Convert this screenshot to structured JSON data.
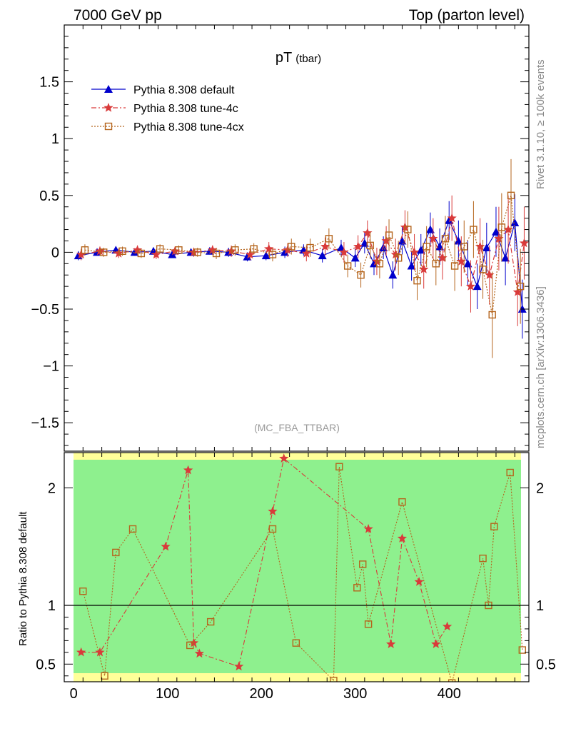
{
  "header": {
    "left": "7000 GeV pp",
    "right": "Top (parton level)"
  },
  "side_text": {
    "rivet": "Rivet 3.1.10, ≥ 100k events",
    "source": "mcplots.cern.ch [arXiv:1306.3436]"
  },
  "chart_data": [
    {
      "type": "scatter",
      "title": "pT",
      "title_sub": "(tbar)",
      "watermark": "(MC_FBA_TTBAR)",
      "xlabel": "",
      "ylabel": "",
      "xlim": [
        -10,
        485
      ],
      "ylim": [
        -1.75,
        2.0
      ],
      "yticks": [
        -1.5,
        -1,
        -0.5,
        0,
        0.5,
        1,
        1.5
      ],
      "ytick_labels": [
        "−1.5",
        "−1",
        "−0.5",
        "0",
        "0.5",
        "1",
        "1.5"
      ],
      "legend_position": "top-left",
      "series": [
        {
          "name": "Pythia 8.308 default",
          "color": "#0000cc",
          "marker": "triangle",
          "line": "solid",
          "x": [
            5,
            25,
            45,
            65,
            85,
            105,
            125,
            145,
            165,
            185,
            205,
            225,
            245,
            265,
            285,
            300,
            310,
            320,
            330,
            340,
            350,
            360,
            370,
            380,
            390,
            400,
            410,
            420,
            430,
            440,
            450,
            460,
            470,
            478
          ],
          "y": [
            -0.03,
            0.0,
            0.02,
            0.0,
            0.01,
            -0.02,
            0.0,
            0.01,
            0.0,
            -0.04,
            -0.03,
            0.0,
            0.02,
            -0.03,
            0.04,
            -0.05,
            0.08,
            -0.1,
            0.04,
            -0.2,
            0.1,
            -0.12,
            0.02,
            0.2,
            0.05,
            0.28,
            0.1,
            -0.1,
            -0.3,
            0.04,
            0.18,
            -0.05,
            0.26,
            -0.5
          ],
          "yerr": [
            0.04,
            0.03,
            0.03,
            0.03,
            0.03,
            0.03,
            0.03,
            0.03,
            0.04,
            0.04,
            0.04,
            0.05,
            0.05,
            0.06,
            0.07,
            0.08,
            0.09,
            0.1,
            0.1,
            0.12,
            0.12,
            0.13,
            0.14,
            0.15,
            0.16,
            0.17,
            0.18,
            0.2,
            0.2,
            0.22,
            0.22,
            0.24,
            0.25,
            0.26
          ]
        },
        {
          "name": "Pythia 8.308 tune-4c",
          "color": "#d93a3a",
          "marker": "star",
          "line": "dashdot",
          "x": [
            8,
            28,
            48,
            68,
            88,
            108,
            128,
            148,
            168,
            188,
            208,
            228,
            248,
            268,
            288,
            303,
            313,
            323,
            333,
            343,
            353,
            363,
            373,
            383,
            393,
            403,
            413,
            423,
            433,
            443,
            453,
            463,
            473,
            480
          ],
          "y": [
            -0.02,
            0.01,
            -0.01,
            0.02,
            -0.02,
            0.01,
            0.0,
            0.02,
            0.01,
            -0.02,
            0.03,
            0.02,
            -0.01,
            0.05,
            0.0,
            0.05,
            0.17,
            -0.08,
            0.1,
            -0.02,
            0.22,
            0.0,
            -0.15,
            0.12,
            -0.05,
            0.3,
            -0.08,
            -0.3,
            0.05,
            -0.2,
            0.12,
            0.2,
            -0.35,
            0.08
          ],
          "yerr": [
            0.05,
            0.04,
            0.04,
            0.04,
            0.04,
            0.04,
            0.04,
            0.04,
            0.05,
            0.05,
            0.06,
            0.06,
            0.07,
            0.08,
            0.09,
            0.1,
            0.11,
            0.12,
            0.13,
            0.14,
            0.15,
            0.16,
            0.17,
            0.18,
            0.19,
            0.2,
            0.22,
            0.23,
            0.25,
            0.26,
            0.28,
            0.3,
            0.3,
            0.32
          ]
        },
        {
          "name": "Pythia 8.308 tune-4cx",
          "color": "#b5651d",
          "marker": "square",
          "line": "dotted",
          "x": [
            12,
            32,
            52,
            72,
            92,
            112,
            132,
            152,
            172,
            192,
            212,
            232,
            252,
            272,
            292,
            306,
            316,
            326,
            336,
            346,
            356,
            366,
            376,
            386,
            396,
            406,
            416,
            426,
            436,
            446,
            456,
            466,
            476
          ],
          "y": [
            0.02,
            0.0,
            0.01,
            -0.01,
            0.03,
            0.02,
            0.0,
            -0.01,
            0.02,
            0.03,
            -0.02,
            0.05,
            0.04,
            0.12,
            -0.12,
            -0.2,
            0.06,
            -0.1,
            0.15,
            -0.05,
            0.2,
            -0.25,
            0.05,
            -0.1,
            0.12,
            -0.12,
            0.05,
            0.2,
            -0.15,
            -0.55,
            0.22,
            0.5,
            -0.3
          ],
          "yerr": [
            0.05,
            0.04,
            0.04,
            0.04,
            0.04,
            0.04,
            0.04,
            0.05,
            0.05,
            0.05,
            0.06,
            0.07,
            0.08,
            0.09,
            0.1,
            0.11,
            0.12,
            0.13,
            0.14,
            0.15,
            0.16,
            0.17,
            0.18,
            0.19,
            0.2,
            0.22,
            0.23,
            0.25,
            0.26,
            0.38,
            0.3,
            0.32,
            0.33
          ]
        }
      ]
    },
    {
      "type": "scatter",
      "ylabel": "Ratio to Pythia 8.308 default",
      "xlim": [
        -10,
        485
      ],
      "ylim": [
        0.35,
        2.3
      ],
      "yticks": [
        0.5,
        1,
        2
      ],
      "ytick_labels": [
        "0.5",
        "1",
        "2"
      ],
      "xticks": [
        0,
        100,
        200,
        300,
        400
      ],
      "xtick_labels": [
        "0",
        "100",
        "200",
        "300",
        "400"
      ],
      "reference_line": 1,
      "band_colors": {
        "inner": "#8ef08e",
        "outer": "#ffff99"
      },
      "series": [
        {
          "name": "Pythia 8.308 tune-4c",
          "color": "#d93a3a",
          "marker": "star",
          "line": "dashdot",
          "x": [
            8,
            28,
            98,
            122,
            128,
            134,
            176,
            212,
            224,
            314,
            338,
            350,
            368,
            386,
            398
          ],
          "y": [
            0.6,
            0.6,
            1.5,
            2.15,
            0.68,
            0.59,
            0.48,
            1.8,
            2.25,
            1.65,
            0.67,
            1.57,
            1.2,
            0.67,
            0.82
          ]
        },
        {
          "name": "Pythia 8.308 tune-4cx",
          "color": "#b5651d",
          "marker": "square",
          "line": "dotted",
          "x": [
            10,
            33,
            45,
            63,
            124,
            146,
            212,
            237,
            277,
            283,
            302,
            308,
            314,
            350,
            403,
            436,
            442,
            448,
            465,
            478
          ],
          "y": [
            1.12,
            0.4,
            1.45,
            1.65,
            0.66,
            0.86,
            1.65,
            0.68,
            0.36,
            2.18,
            1.15,
            1.35,
            0.84,
            1.88,
            0.34,
            1.4,
            1.0,
            1.67,
            2.13,
            0.62
          ]
        }
      ]
    }
  ]
}
